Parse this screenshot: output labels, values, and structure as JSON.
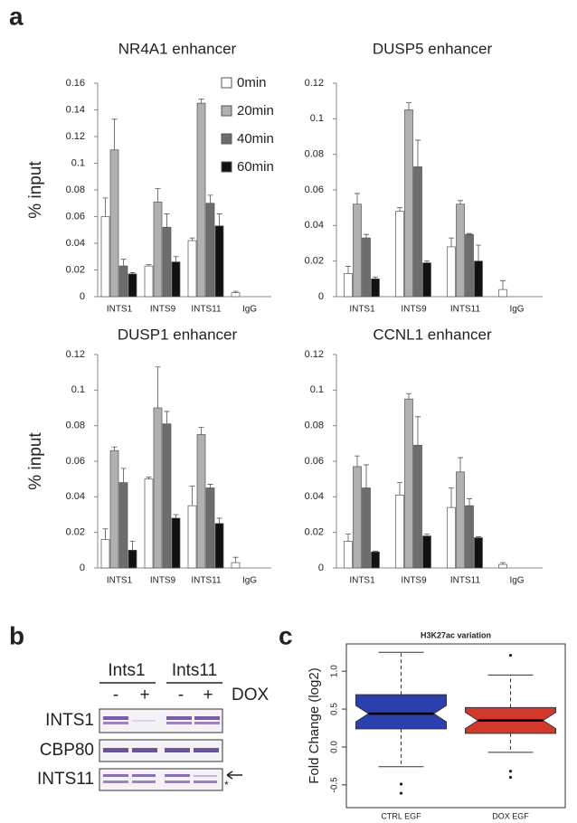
{
  "panel_labels": [
    "a",
    "b",
    "c"
  ],
  "chart_data": [
    {
      "type": "bar",
      "title": "NR4A1 enhancer",
      "y_label": "% input",
      "categories": [
        "INTS1",
        "INTS9",
        "INTS11",
        "IgG"
      ],
      "series": [
        {
          "name": "0min",
          "color": "#ffffff",
          "values": [
            0.06,
            0.023,
            0.042,
            0.003
          ],
          "errors": [
            0.014,
            0.001,
            0.002,
            0.001
          ]
        },
        {
          "name": "20min",
          "color": "#b0b0b0",
          "values": [
            0.11,
            0.071,
            0.145,
            null
          ],
          "errors": [
            0.023,
            0.01,
            0.003,
            null
          ]
        },
        {
          "name": "40min",
          "color": "#6d6d6d",
          "values": [
            0.023,
            0.052,
            0.07,
            null
          ],
          "errors": [
            0.005,
            0.01,
            0.006,
            null
          ]
        },
        {
          "name": "60min",
          "color": "#111111",
          "values": [
            0.017,
            0.026,
            0.053,
            null
          ],
          "errors": [
            0.001,
            0.004,
            0.009,
            null
          ]
        }
      ],
      "ylim": [
        0,
        0.16
      ],
      "yticks": [
        0,
        0.02,
        0.04,
        0.06,
        0.08,
        0.1,
        0.12,
        0.14,
        0.16
      ]
    },
    {
      "type": "bar",
      "title": "DUSP5 enhancer",
      "categories": [
        "INTS1",
        "INTS9",
        "INTS11",
        "IgG"
      ],
      "series": [
        {
          "color": "#ffffff",
          "values": [
            0.013,
            0.048,
            0.028,
            0.004
          ],
          "errors": [
            0.004,
            0.002,
            0.005,
            0.005
          ]
        },
        {
          "color": "#b0b0b0",
          "values": [
            0.052,
            0.105,
            0.052,
            null
          ],
          "errors": [
            0.006,
            0.004,
            0.002,
            null
          ]
        },
        {
          "color": "#6d6d6d",
          "values": [
            0.033,
            0.073,
            0.035,
            null
          ],
          "errors": [
            0.002,
            0.015,
            0.0005,
            null
          ]
        },
        {
          "color": "#111111",
          "values": [
            0.01,
            0.019,
            0.02,
            null
          ],
          "errors": [
            0.001,
            0.001,
            0.009,
            null
          ]
        }
      ],
      "ylim": [
        0,
        0.12
      ],
      "yticks": [
        0,
        0.02,
        0.04,
        0.06,
        0.08,
        0.1,
        0.12
      ]
    },
    {
      "type": "bar",
      "title": "DUSP1 enhancer",
      "y_label": "% input",
      "categories": [
        "INTS1",
        "INTS9",
        "INTS11",
        "IgG"
      ],
      "series": [
        {
          "color": "#ffffff",
          "values": [
            0.016,
            0.05,
            0.035,
            0.003
          ],
          "errors": [
            0.006,
            0.001,
            0.011,
            0.003
          ]
        },
        {
          "color": "#b0b0b0",
          "values": [
            0.066,
            0.09,
            0.075,
            null
          ],
          "errors": [
            0.002,
            0.023,
            0.004,
            null
          ]
        },
        {
          "color": "#6d6d6d",
          "values": [
            0.048,
            0.081,
            0.045,
            null
          ],
          "errors": [
            0.008,
            0.007,
            0.002,
            null
          ]
        },
        {
          "color": "#111111",
          "values": [
            0.01,
            0.028,
            0.025,
            null
          ],
          "errors": [
            0.005,
            0.002,
            0.003,
            null
          ]
        }
      ],
      "ylim": [
        0,
        0.12
      ],
      "yticks": [
        0,
        0.02,
        0.04,
        0.06,
        0.08,
        0.1,
        0.12
      ]
    },
    {
      "type": "bar",
      "title": "CCNL1 enhancer",
      "categories": [
        "INTS1",
        "INTS9",
        "INTS11",
        "IgG"
      ],
      "series": [
        {
          "color": "#ffffff",
          "values": [
            0.015,
            0.041,
            0.034,
            0.002
          ],
          "errors": [
            0.004,
            0.007,
            0.011,
            0.001
          ]
        },
        {
          "color": "#b0b0b0",
          "values": [
            0.057,
            0.095,
            0.054,
            null
          ],
          "errors": [
            0.006,
            0.003,
            0.008,
            null
          ]
        },
        {
          "color": "#6d6d6d",
          "values": [
            0.045,
            0.069,
            0.035,
            null
          ],
          "errors": [
            0.013,
            0.016,
            0.004,
            null
          ]
        },
        {
          "color": "#111111",
          "values": [
            0.009,
            0.018,
            0.017,
            null
          ],
          "errors": [
            0.0005,
            0.001,
            0.0005,
            null
          ]
        }
      ],
      "ylim": [
        0,
        0.12
      ],
      "yticks": [
        0,
        0.02,
        0.04,
        0.06,
        0.08,
        0.1,
        0.12
      ]
    },
    {
      "type": "box",
      "title": "H3K27ac variation",
      "y_label": "Fold Change (log2)",
      "categories": [
        "CTRL EGF",
        "DOX EGF"
      ],
      "boxes": [
        {
          "color": "#2b3fae",
          "whislo": -0.26,
          "q1": 0.24,
          "med": 0.44,
          "q3": 0.69,
          "whishi": 1.25,
          "fliers": [
            -0.49,
            -0.61
          ]
        },
        {
          "color": "#d2392b",
          "whislo": -0.07,
          "q1": 0.18,
          "med": 0.35,
          "q3": 0.52,
          "whishi": 0.95,
          "fliers": [
            1.21,
            -0.32,
            -0.4
          ]
        }
      ],
      "ylim": [
        -0.8,
        1.36
      ],
      "yticks": [
        -0.5,
        {
          "value": 0,
          "label": "0.0"
        },
        0.5,
        {
          "value": 1,
          "label": "1.0"
        }
      ]
    }
  ],
  "blot": {
    "groups": [
      "Ints1",
      "Ints11"
    ],
    "treatment_signs": [
      "-",
      "+",
      "-",
      "+"
    ],
    "treatment": "DOX",
    "rows": [
      "INTS1",
      "CBP80",
      "INTS11"
    ],
    "band_marker": "*"
  }
}
